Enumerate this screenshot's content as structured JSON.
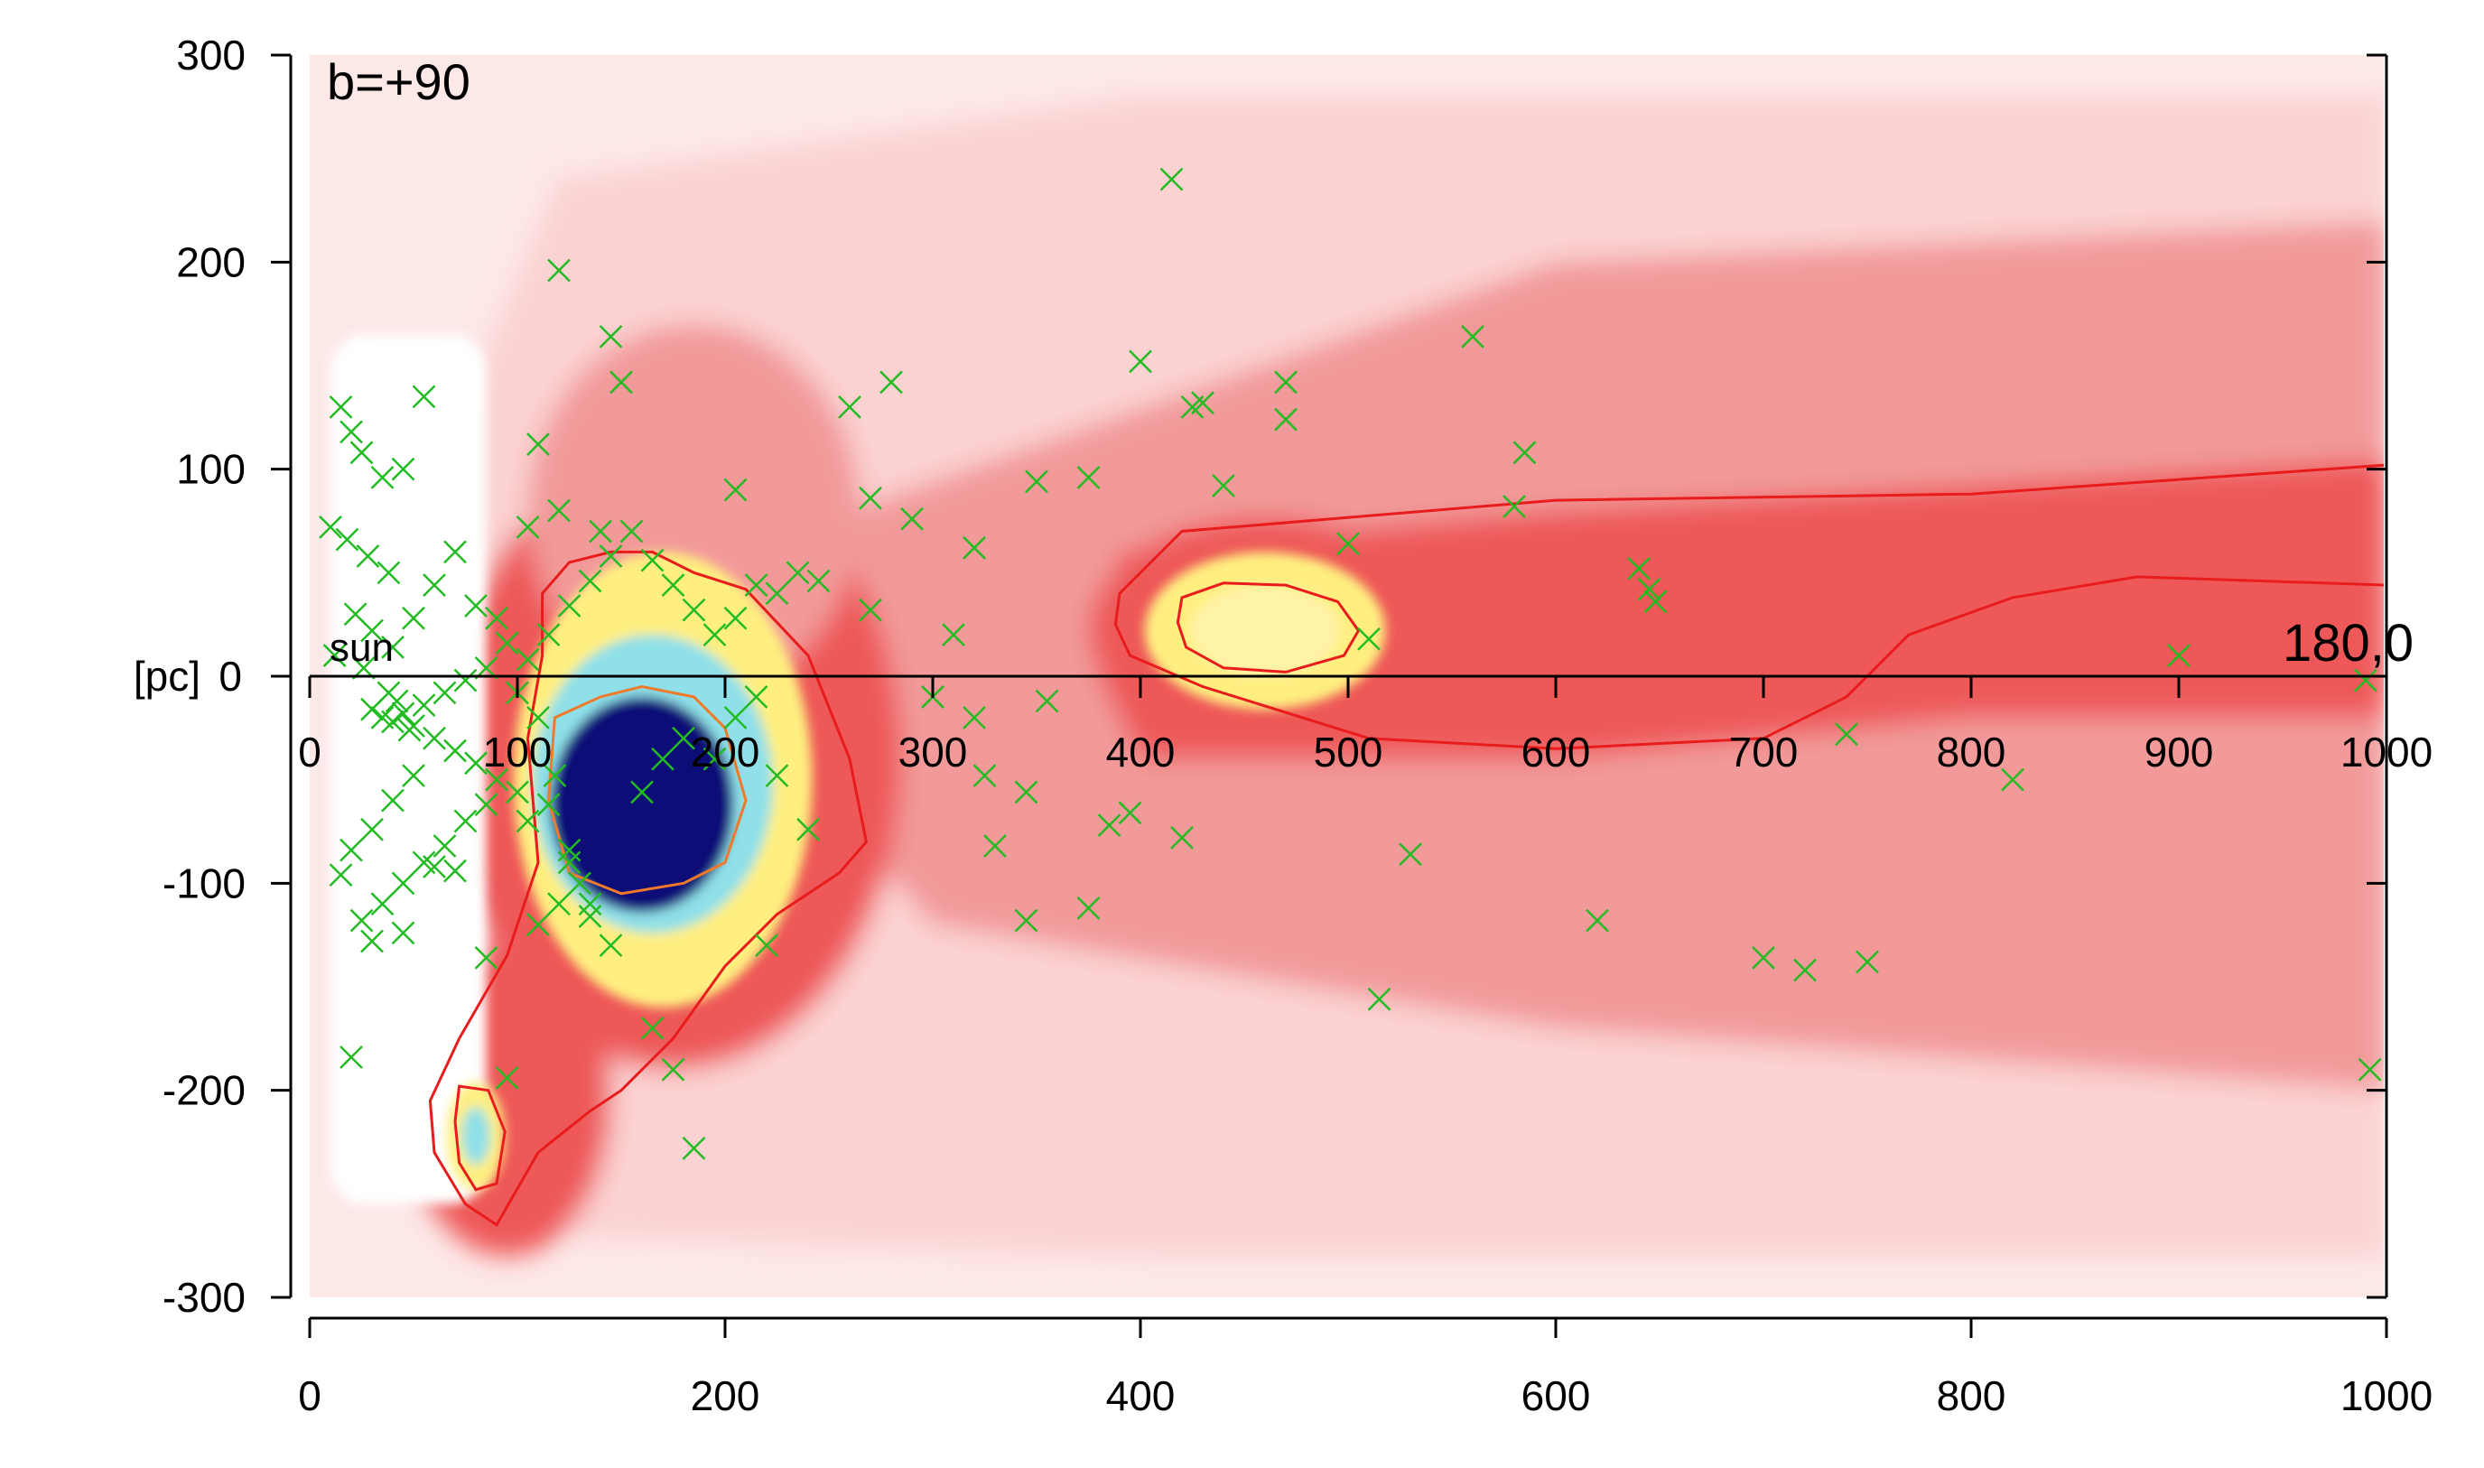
{
  "chart_data": {
    "type": "heatmap",
    "title": "",
    "xlabel": "",
    "ylabel": "[pc]",
    "xlim": [
      0,
      1000
    ],
    "ylim": [
      -300,
      300
    ],
    "x_ticks_bottom": [
      "0",
      "200",
      "400",
      "600",
      "800",
      "1000"
    ],
    "x_ticks_inner": [
      "0",
      "100",
      "200",
      "300",
      "400",
      "500",
      "600",
      "700",
      "800",
      "900",
      "1000"
    ],
    "y_ticks": [
      "300",
      "200",
      "100",
      "0",
      "-100",
      "-200",
      "-300"
    ],
    "grid": false,
    "annotations": {
      "panel_label": "b=+90",
      "origin_label": "sun",
      "end_label": "180,0"
    },
    "colors": {
      "background_density": "#fde8e8",
      "low_density": "#fbd2d2",
      "mid_density": "#f29a9a",
      "high_density": "#ee5858",
      "peak_warm": "#ffef80",
      "peak_cool": "#8fe0e8",
      "peak_max": "#0a0a78",
      "contour_outer": "#e81c1c",
      "contour_inner": "#f07a2a",
      "markers": "#22bb22"
    },
    "density_regions": [
      {
        "name": "diffuse band",
        "level": "low",
        "x": [
          0,
          1000
        ],
        "y": [
          -300,
          300
        ]
      },
      {
        "name": "mid-plane band",
        "level": "mid",
        "x": [
          380,
          1000
        ],
        "y": [
          -100,
          100
        ]
      },
      {
        "name": "near cloud complex",
        "level": "max",
        "center": [
          160,
          -60
        ]
      },
      {
        "name": "cloud at 460 pc",
        "level": "warm",
        "center": [
          460,
          22
        ]
      },
      {
        "name": "cloud at 80 pc below plane",
        "level": "warm",
        "center": [
          80,
          -222
        ]
      }
    ],
    "series": [
      {
        "marker": "x",
        "color": "#22bb22",
        "points": [
          [
            15,
            130
          ],
          [
            20,
            118
          ],
          [
            25,
            108
          ],
          [
            35,
            96
          ],
          [
            45,
            100
          ],
          [
            55,
            135
          ],
          [
            10,
            72
          ],
          [
            18,
            66
          ],
          [
            28,
            58
          ],
          [
            38,
            50
          ],
          [
            22,
            30
          ],
          [
            30,
            22
          ],
          [
            40,
            14
          ],
          [
            12,
            10
          ],
          [
            26,
            4
          ],
          [
            50,
            28
          ],
          [
            60,
            44
          ],
          [
            70,
            60
          ],
          [
            80,
            34
          ],
          [
            90,
            28
          ],
          [
            95,
            16
          ],
          [
            85,
            4
          ],
          [
            75,
            -2
          ],
          [
            65,
            -8
          ],
          [
            55,
            -14
          ],
          [
            45,
            -18
          ],
          [
            35,
            -20
          ],
          [
            30,
            -16
          ],
          [
            40,
            -22
          ],
          [
            50,
            -24
          ],
          [
            42,
            -12
          ],
          [
            48,
            -26
          ],
          [
            38,
            -8
          ],
          [
            60,
            -30
          ],
          [
            70,
            -36
          ],
          [
            80,
            -42
          ],
          [
            90,
            -50
          ],
          [
            100,
            -56
          ],
          [
            85,
            -62
          ],
          [
            75,
            -70
          ],
          [
            65,
            -82
          ],
          [
            55,
            -90
          ],
          [
            45,
            -100
          ],
          [
            35,
            -110
          ],
          [
            25,
            -118
          ],
          [
            15,
            -96
          ],
          [
            20,
            -84
          ],
          [
            30,
            -74
          ],
          [
            40,
            -60
          ],
          [
            50,
            -48
          ],
          [
            20,
            -184
          ],
          [
            30,
            -128
          ],
          [
            45,
            -124
          ],
          [
            60,
            -92
          ],
          [
            70,
            -94
          ],
          [
            85,
            -136
          ],
          [
            95,
            -194
          ],
          [
            110,
            -120
          ],
          [
            120,
            -110
          ],
          [
            130,
            -100
          ],
          [
            105,
            -70
          ],
          [
            115,
            -62
          ],
          [
            125,
            -90
          ],
          [
            135,
            -110
          ],
          [
            145,
            -130
          ],
          [
            160,
            -56
          ],
          [
            170,
            -40
          ],
          [
            180,
            -30
          ],
          [
            195,
            -40
          ],
          [
            205,
            -20
          ],
          [
            215,
            -10
          ],
          [
            225,
            -48
          ],
          [
            240,
            -74
          ],
          [
            220,
            -130
          ],
          [
            175,
            -190
          ],
          [
            185,
            -228
          ],
          [
            165,
            -170
          ],
          [
            135,
            -116
          ],
          [
            125,
            -84
          ],
          [
            118,
            -48
          ],
          [
            110,
            -20
          ],
          [
            100,
            -8
          ],
          [
            105,
            8
          ],
          [
            115,
            20
          ],
          [
            125,
            34
          ],
          [
            135,
            46
          ],
          [
            145,
            58
          ],
          [
            155,
            70
          ],
          [
            165,
            56
          ],
          [
            175,
            44
          ],
          [
            185,
            32
          ],
          [
            195,
            20
          ],
          [
            205,
            28
          ],
          [
            215,
            44
          ],
          [
            225,
            40
          ],
          [
            235,
            50
          ],
          [
            245,
            46
          ],
          [
            205,
            90
          ],
          [
            120,
            196
          ],
          [
            145,
            164
          ],
          [
            150,
            142
          ],
          [
            110,
            112
          ],
          [
            105,
            72
          ],
          [
            120,
            80
          ],
          [
            140,
            70
          ],
          [
            260,
            130
          ],
          [
            280,
            142
          ],
          [
            290,
            76
          ],
          [
            270,
            86
          ],
          [
            270,
            32
          ],
          [
            300,
            -10
          ],
          [
            310,
            20
          ],
          [
            320,
            62
          ],
          [
            320,
            -20
          ],
          [
            325,
            -48
          ],
          [
            330,
            -82
          ],
          [
            345,
            -56
          ],
          [
            350,
            94
          ],
          [
            355,
            -12
          ],
          [
            345,
            -118
          ],
          [
            375,
            96
          ],
          [
            375,
            -112
          ],
          [
            385,
            -72
          ],
          [
            395,
            -66
          ],
          [
            400,
            152
          ],
          [
            415,
            240
          ],
          [
            420,
            -78
          ],
          [
            425,
            130
          ],
          [
            430,
            132
          ],
          [
            440,
            92
          ],
          [
            470,
            142
          ],
          [
            470,
            124
          ],
          [
            500,
            64
          ],
          [
            510,
            18
          ],
          [
            515,
            -156
          ],
          [
            530,
            -86
          ],
          [
            560,
            164
          ],
          [
            580,
            82
          ],
          [
            585,
            108
          ],
          [
            620,
            -118
          ],
          [
            640,
            52
          ],
          [
            645,
            42
          ],
          [
            648,
            36
          ],
          [
            700,
            -136
          ],
          [
            720,
            -142
          ],
          [
            740,
            -28
          ],
          [
            750,
            -138
          ],
          [
            820,
            -50
          ],
          [
            900,
            10
          ],
          [
            990,
            -2
          ],
          [
            992,
            -190
          ]
        ]
      }
    ]
  }
}
